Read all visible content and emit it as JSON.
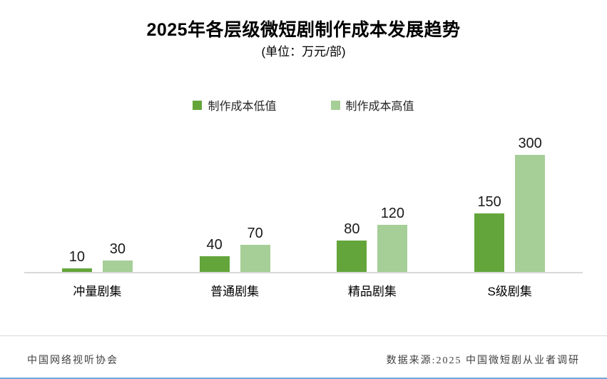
{
  "title": "2025年各层级微短剧制作成本发展趋势",
  "subtitle": "(单位：万元/部)",
  "legend": [
    {
      "label": "制作成本低值",
      "color": "#64a53b"
    },
    {
      "label": "制作成本高值",
      "color": "#a6ce97"
    }
  ],
  "chart_data": {
    "type": "bar",
    "title": "2025年各层级微短剧制作成本发展趋势",
    "unit_note": "(单位：万元/部)",
    "categories": [
      "冲量剧集",
      "普通剧集",
      "精品剧集",
      "S级剧集"
    ],
    "series": [
      {
        "name": "制作成本低值",
        "color": "#64a53b",
        "values": [
          10,
          40,
          80,
          150
        ]
      },
      {
        "name": "制作成本高值",
        "color": "#a6ce97",
        "values": [
          30,
          70,
          120,
          300
        ]
      }
    ],
    "ylim": [
      0,
      300
    ],
    "grid": false,
    "legend_position": "top",
    "data_labels": true,
    "xlabel": "",
    "ylabel": ""
  },
  "footer": {
    "left": "中国网络视听协会",
    "right": "数据来源:2025 中国微短剧从业者调研"
  },
  "colors": {
    "series_low": "#64a53b",
    "series_high": "#a6ce97",
    "axis_line": "#d9d9d9",
    "divider": "#d9d9d9",
    "bottom_rule": "#6fa8dc",
    "footer_text": "#404040",
    "text": "#000000"
  }
}
